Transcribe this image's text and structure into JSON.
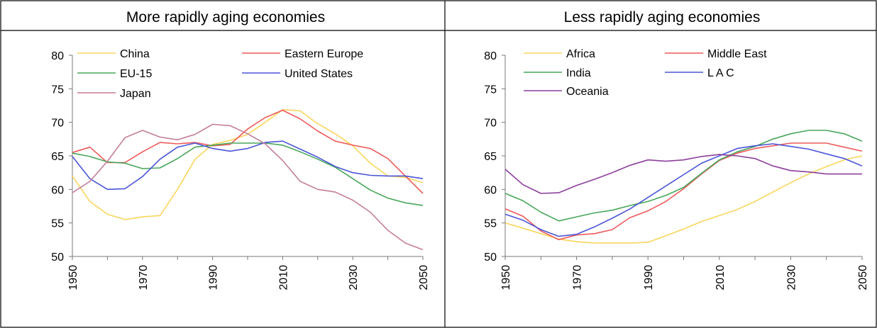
{
  "chart_data": [
    {
      "type": "line",
      "title": "More rapidly aging economies",
      "xlabel": "",
      "ylabel": "",
      "xlim": [
        1950,
        2050
      ],
      "ylim": [
        50,
        80
      ],
      "xticks": [
        1950,
        1970,
        1990,
        2010,
        2030,
        2050
      ],
      "yticks": [
        50,
        55,
        60,
        65,
        70,
        75,
        80
      ],
      "grid": false,
      "legend_position": "top",
      "x": [
        1950,
        1955,
        1960,
        1965,
        1970,
        1975,
        1980,
        1985,
        1990,
        1995,
        2000,
        2005,
        2010,
        2015,
        2020,
        2025,
        2030,
        2035,
        2040,
        2045,
        2050
      ],
      "series": [
        {
          "name": "China",
          "color": "#f9d65b",
          "values": [
            62.0,
            58.2,
            56.3,
            55.5,
            55.9,
            56.1,
            60.0,
            64.5,
            66.7,
            67.3,
            68.2,
            70.0,
            71.9,
            71.7,
            69.8,
            68.3,
            66.5,
            63.9,
            62.0,
            61.8,
            61.0
          ]
        },
        {
          "name": "Eastern Europe",
          "color": "#ee5a5a",
          "values": [
            65.5,
            66.3,
            64.0,
            64.0,
            65.6,
            67.0,
            66.8,
            67.0,
            66.5,
            66.7,
            69.0,
            70.7,
            71.8,
            70.5,
            68.7,
            67.2,
            66.6,
            66.1,
            64.6,
            62.0,
            59.4
          ]
        },
        {
          "name": "EU-15",
          "color": "#48a75a",
          "values": [
            65.4,
            64.9,
            64.1,
            63.9,
            63.1,
            63.2,
            64.6,
            66.3,
            66.6,
            66.9,
            66.9,
            66.9,
            66.6,
            65.6,
            64.5,
            63.3,
            61.6,
            59.9,
            58.7,
            58.0,
            57.6
          ]
        },
        {
          "name": "United States",
          "color": "#4a55d8",
          "values": [
            64.9,
            61.6,
            60.0,
            60.1,
            61.9,
            64.5,
            66.3,
            66.9,
            66.1,
            65.7,
            66.1,
            67.0,
            67.2,
            66.0,
            64.8,
            63.4,
            62.5,
            62.1,
            62.0,
            62.0,
            61.6
          ]
        },
        {
          "name": "Japan",
          "color": "#c47e9a",
          "values": [
            59.5,
            61.2,
            64.2,
            67.7,
            68.8,
            67.8,
            67.4,
            68.2,
            69.7,
            69.5,
            68.3,
            66.8,
            64.3,
            61.2,
            60.0,
            59.6,
            58.4,
            56.6,
            53.9,
            52.0,
            51.0
          ]
        }
      ]
    },
    {
      "type": "line",
      "title": "Less rapidly aging economies",
      "xlabel": "",
      "ylabel": "",
      "xlim": [
        1950,
        2050
      ],
      "ylim": [
        50,
        80
      ],
      "xticks": [
        1950,
        1970,
        1990,
        2010,
        2030,
        2050
      ],
      "yticks": [
        50,
        55,
        60,
        65,
        70,
        75,
        80
      ],
      "grid": false,
      "legend_position": "top",
      "x": [
        1950,
        1955,
        1960,
        1965,
        1970,
        1975,
        1980,
        1985,
        1990,
        1995,
        2000,
        2005,
        2010,
        2015,
        2020,
        2025,
        2030,
        2035,
        2040,
        2045,
        2050
      ],
      "series": [
        {
          "name": "Africa",
          "color": "#f9d65b",
          "values": [
            55.0,
            54.2,
            53.4,
            52.6,
            52.2,
            52.0,
            52.0,
            52.0,
            52.1,
            53.1,
            54.1,
            55.2,
            56.1,
            57.0,
            58.2,
            59.6,
            61.0,
            62.3,
            63.4,
            64.4,
            65.0
          ]
        },
        {
          "name": "Middle East",
          "color": "#ee5a5a",
          "values": [
            57.1,
            56.0,
            53.8,
            52.5,
            53.2,
            53.4,
            54.0,
            55.8,
            56.8,
            58.2,
            60.1,
            62.3,
            64.3,
            65.4,
            66.1,
            66.5,
            66.9,
            66.9,
            66.9,
            66.3,
            65.7
          ]
        },
        {
          "name": "India",
          "color": "#48a75a",
          "values": [
            59.4,
            58.3,
            56.6,
            55.3,
            55.9,
            56.5,
            56.9,
            57.6,
            58.2,
            59.1,
            60.3,
            62.4,
            64.4,
            65.6,
            66.4,
            67.5,
            68.3,
            68.8,
            68.8,
            68.3,
            67.2
          ]
        },
        {
          "name": "L A C",
          "color": "#4a55d8",
          "values": [
            56.3,
            55.4,
            54.0,
            53.0,
            53.3,
            54.4,
            55.7,
            57.1,
            58.8,
            60.5,
            62.2,
            63.9,
            65.0,
            66.1,
            66.5,
            66.8,
            66.4,
            66.0,
            65.3,
            64.6,
            63.5
          ]
        },
        {
          "name": "Oceania",
          "color": "#8c3f9c",
          "values": [
            63.0,
            60.7,
            59.4,
            59.5,
            60.6,
            61.5,
            62.5,
            63.6,
            64.4,
            64.2,
            64.4,
            64.9,
            65.2,
            65.0,
            64.6,
            63.5,
            62.8,
            62.6,
            62.3,
            62.3,
            62.3
          ]
        }
      ]
    }
  ]
}
